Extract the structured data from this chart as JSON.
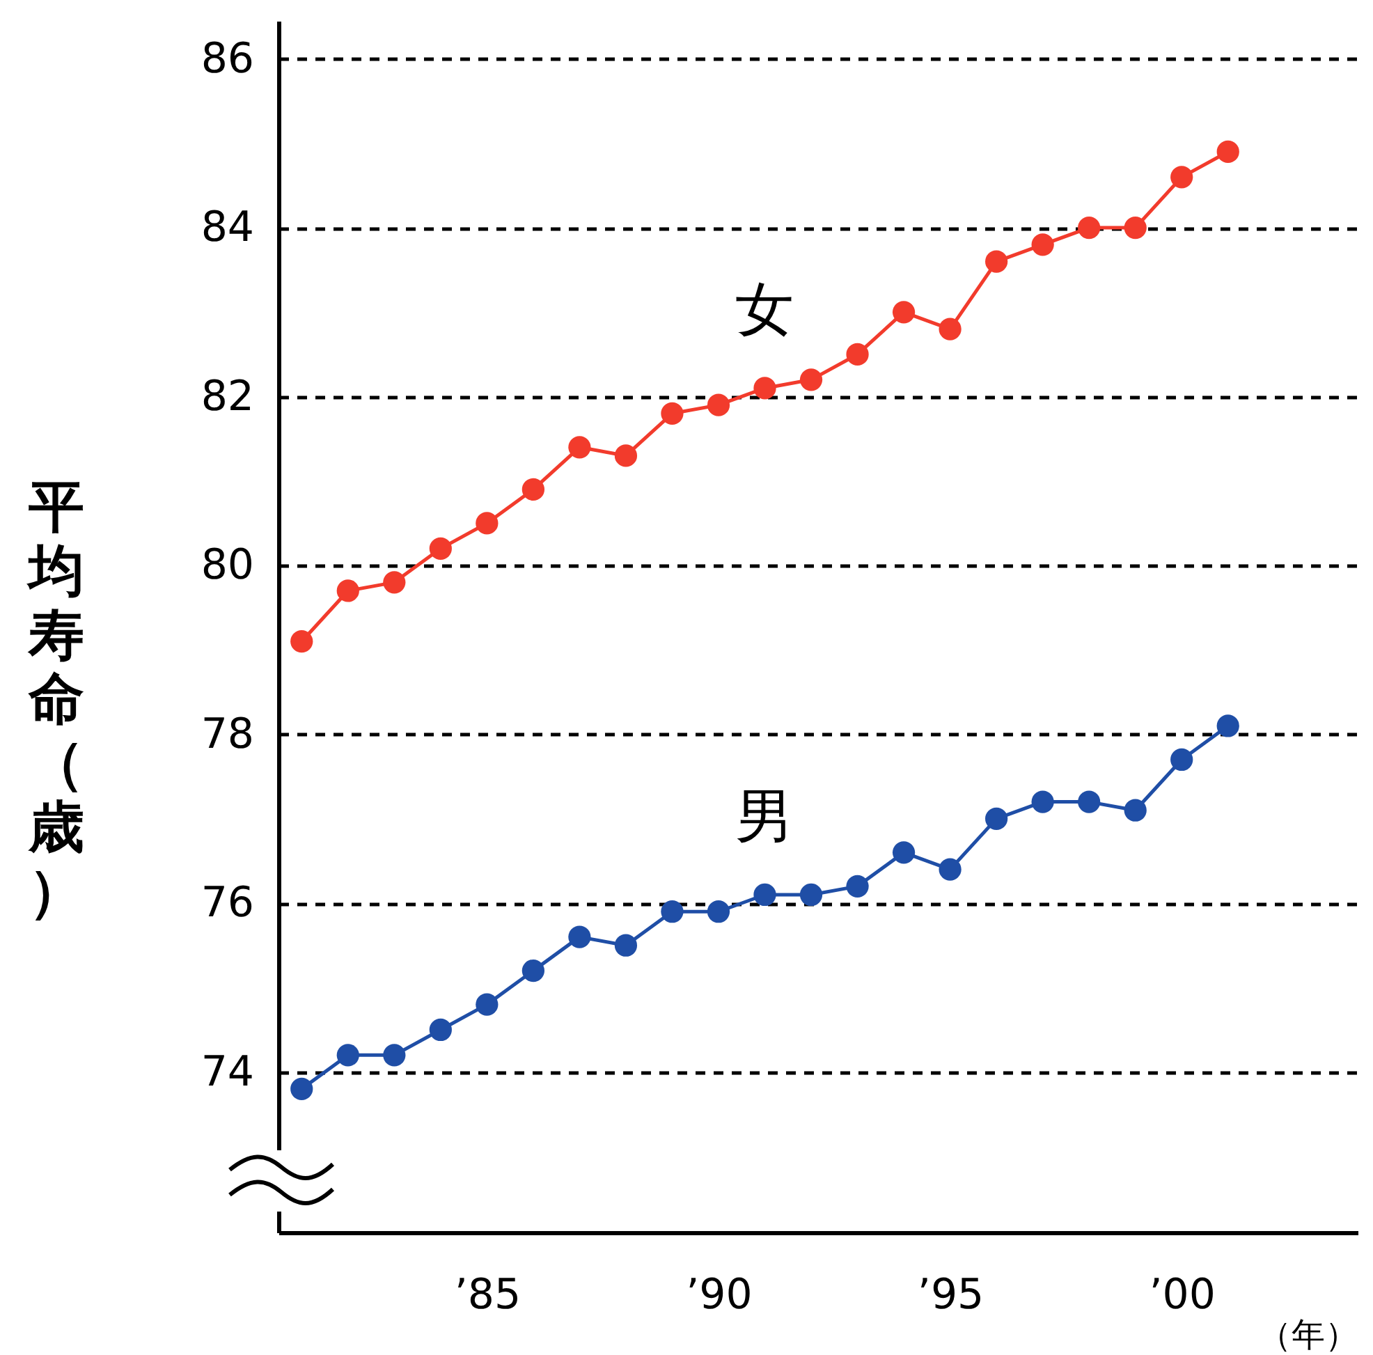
{
  "chart_data": {
    "type": "line",
    "ylabel": "平均寿命（歳）",
    "xlabel": "（年）",
    "x": [
      1981,
      1982,
      1983,
      1984,
      1985,
      1986,
      1987,
      1988,
      1989,
      1990,
      1991,
      1992,
      1993,
      1994,
      1995,
      1996,
      1997,
      1998,
      1999,
      2000,
      2001
    ],
    "series": [
      {
        "name": "女",
        "color": "#f23b2c",
        "values": [
          79.1,
          79.7,
          79.8,
          80.2,
          80.5,
          80.9,
          81.4,
          81.3,
          81.8,
          81.9,
          82.1,
          82.2,
          82.5,
          83.0,
          82.8,
          83.6,
          83.8,
          84.0,
          84.0,
          84.6,
          84.9
        ]
      },
      {
        "name": "男",
        "color": "#1f4ea6",
        "values": [
          73.8,
          74.2,
          74.2,
          74.5,
          74.8,
          75.2,
          75.6,
          75.5,
          75.9,
          75.9,
          76.1,
          76.1,
          76.2,
          76.6,
          76.4,
          77.0,
          77.2,
          77.2,
          77.1,
          77.7,
          78.1
        ]
      }
    ],
    "xlim": [
      1980.5,
      2003.8
    ],
    "xticks": [
      {
        "value": 1985,
        "label": "’85"
      },
      {
        "value": 1990,
        "label": "’90"
      },
      {
        "value": 1995,
        "label": "’95"
      },
      {
        "value": 2000,
        "label": "’00"
      }
    ],
    "ylim": [
      72.1,
      86.45
    ],
    "yticks": [
      74,
      76,
      78,
      80,
      82,
      84,
      86
    ],
    "grid": "y",
    "marker": "circle",
    "line_style": "solid"
  }
}
